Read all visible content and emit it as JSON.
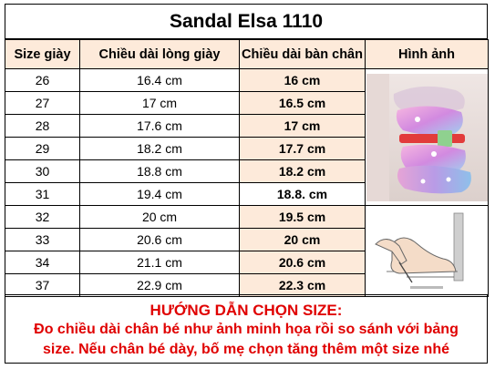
{
  "title": "Sandal Elsa 1110",
  "headers": {
    "size": "Size giày",
    "insole": "Chiều dài lòng giày",
    "foot": "Chiều dài bàn chân",
    "image": "Hình ảnh"
  },
  "rows": [
    {
      "size": "26",
      "insole": "16.4 cm",
      "foot": "16 cm"
    },
    {
      "size": "27",
      "insole": "17 cm",
      "foot": "16.5 cm"
    },
    {
      "size": "28",
      "insole": "17.6 cm",
      "foot": "17 cm"
    },
    {
      "size": "29",
      "insole": "18.2 cm",
      "foot": "17.7 cm"
    },
    {
      "size": "30",
      "insole": "18.8 cm",
      "foot": "18.2 cm"
    },
    {
      "size": "31",
      "insole": "19.4 cm",
      "foot": "18.8. cm"
    },
    {
      "size": "32",
      "insole": "20 cm",
      "foot": "19.5 cm"
    },
    {
      "size": "33",
      "insole": "20.6 cm",
      "foot": "20 cm"
    },
    {
      "size": "34",
      "insole": "21.1 cm",
      "foot": "20.6 cm"
    },
    {
      "size": "37",
      "insole": "22.9 cm",
      "foot": "22.3 cm"
    }
  ],
  "guide": {
    "heading": "HƯỚNG DẪN CHỌN SIZE:",
    "line1": "Đo chiều dài chân bé như ảnh minh họa rồi so sánh với bảng",
    "line2": "size. Nếu chân bé dày, bố mẹ chọn tăng thêm một size nhé"
  },
  "colors": {
    "header_fill": "#fdeada",
    "guide_text": "#e00000",
    "sandal_pink": "#e99ad2",
    "sandal_purple": "#b58ee0",
    "sandal_red": "#e23b3b"
  }
}
